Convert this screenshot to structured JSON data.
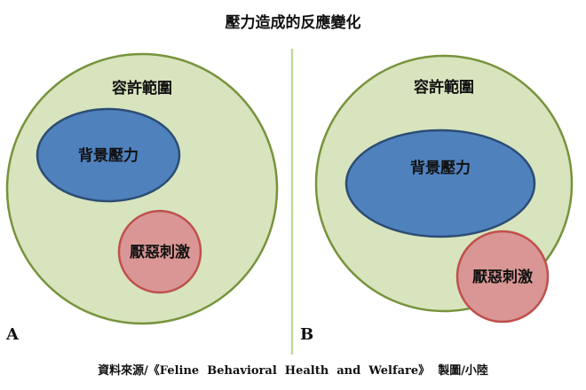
{
  "title": "壓力造成的反應變化",
  "source": "資料來源/《Feline  Behavioral  Health  and  Welfare》  製圖/小陸",
  "panels": [
    {
      "letter": "A",
      "outer_label": "容許範圍",
      "inner_label": "背景壓力",
      "stimulus_label": "厭惡刺激"
    },
    {
      "letter": "B",
      "outer_label": "容許範圍",
      "inner_label": "背景壓力",
      "stimulus_label": "厭惡刺激"
    }
  ],
  "colors": {
    "outer_fill": "#d7e4bd",
    "outer_stroke": "#77933c",
    "inner_fill": "#4f81bd",
    "inner_stroke": "#2c4d75",
    "stimulus_fill": "#d99694",
    "stimulus_stroke": "#c0504d",
    "divider": "#c4d79b"
  }
}
